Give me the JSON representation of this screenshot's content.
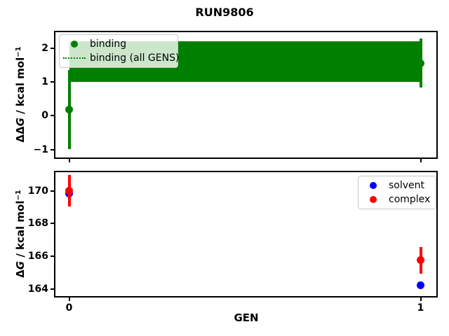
{
  "title": "RUN9806",
  "chart_data": [
    {
      "type": "scatter",
      "subplot": "top",
      "ylabel": "ΔΔG / kcal mol⁻¹",
      "ylabel_parts": {
        "prefix": "ΔΔ",
        "var": "G",
        "units": " / kcal mol",
        "sup": "−1"
      },
      "xlabel": "",
      "x": [
        0,
        1
      ],
      "xlim": [
        -0.05,
        1.05
      ],
      "ylim": [
        -1.27,
        2.5
      ],
      "xticks": [
        0,
        1
      ],
      "yticks": [
        -1,
        0,
        1,
        2
      ],
      "grid": false,
      "series": [
        {
          "name": "binding",
          "type": "scatter",
          "marker": "circle",
          "color": "#008000",
          "y": [
            0.18,
            1.56
          ],
          "yerr": [
            1.18,
            0.73
          ]
        },
        {
          "name": "binding (all GENS)",
          "type": "band",
          "line_style": "dotted",
          "color": "#008000",
          "band_low": 1.0,
          "band_high": 2.21
        }
      ],
      "legend": {
        "position": "upper left",
        "entries": [
          {
            "label": "binding",
            "marker": "dot",
            "color": "#008000"
          },
          {
            "label": "binding (all GENS)",
            "marker": "dotted-line",
            "color": "#008000"
          }
        ]
      }
    },
    {
      "type": "scatter",
      "subplot": "bottom",
      "ylabel": "ΔG / kcal mol⁻¹",
      "ylabel_parts": {
        "prefix": "Δ",
        "var": "G",
        "units": " / kcal mol",
        "sup": "−1"
      },
      "xlabel": "GEN",
      "x": [
        0,
        1
      ],
      "xlim": [
        -0.05,
        1.05
      ],
      "ylim": [
        163.6,
        171.1
      ],
      "xticks": [
        0,
        1
      ],
      "yticks": [
        164,
        166,
        168,
        170
      ],
      "grid": false,
      "series": [
        {
          "name": "solvent",
          "type": "scatter",
          "marker": "circle",
          "color": "#0000ff",
          "y": [
            169.85,
            164.25
          ],
          "yerr": [
            0.25,
            0.05
          ]
        },
        {
          "name": "complex",
          "type": "scatter",
          "marker": "circle",
          "color": "#ff0000",
          "y": [
            170.0,
            165.75
          ],
          "yerr": [
            0.95,
            0.8
          ]
        }
      ],
      "legend": {
        "position": "upper right",
        "entries": [
          {
            "label": "solvent",
            "marker": "dot",
            "color": "#0000ff"
          },
          {
            "label": "complex",
            "marker": "dot",
            "color": "#ff0000"
          }
        ]
      }
    }
  ]
}
